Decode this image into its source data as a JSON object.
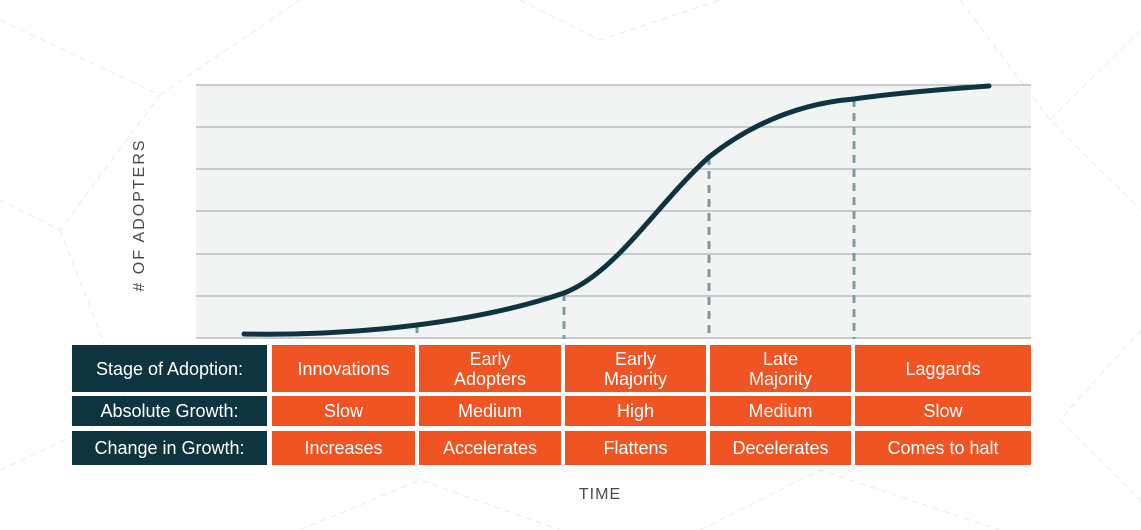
{
  "diagram": {
    "ylabel": "# OF ADOPTERS",
    "xlabel": "TIME",
    "table": {
      "rows": [
        {
          "header": "Stage of Adoption:",
          "cells": [
            "Innovations",
            "Early\nAdopters",
            "Early\nMajority",
            "Late\nMajority",
            "Laggards"
          ]
        },
        {
          "header": "Absolute Growth:",
          "cells": [
            "Slow",
            "Medium",
            "High",
            "Medium",
            "Slow"
          ]
        },
        {
          "header": "Change in Growth:",
          "cells": [
            "Increases",
            "Accelerates",
            "Flattens",
            "Decelerates",
            "Comes to halt"
          ]
        }
      ]
    },
    "colors": {
      "curve": "#0e3440",
      "header_fill": "#0e3440",
      "cell_fill": "#f05423",
      "grid": "#9aa2a4",
      "divider": "#7f9aa0",
      "plot_background": "#f1f4f3"
    }
  }
}
